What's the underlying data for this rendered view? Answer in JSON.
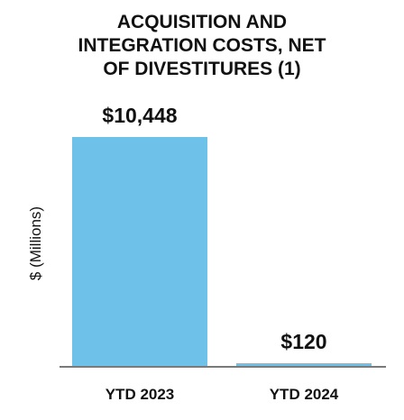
{
  "chart_data": {
    "type": "bar",
    "title_lines": [
      "ACQUISITION AND",
      "INTEGRATION COSTS, NET",
      "OF DIVESTITURES (1)"
    ],
    "ylabel": "$ (Millions)",
    "xlabel": "",
    "categories": [
      "YTD 2023",
      "YTD 2024"
    ],
    "values": [
      10448,
      120
    ],
    "data_labels": [
      "$10,448",
      "$120"
    ],
    "ylim": [
      0,
      10448
    ],
    "grid": false,
    "legend": "none",
    "bar_color": "#6EC1E8",
    "axis_color": "#7a7a7a"
  }
}
